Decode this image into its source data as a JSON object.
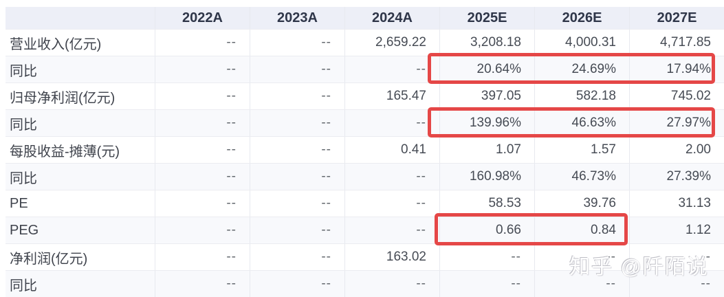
{
  "colors": {
    "header_bg": "#edeff7",
    "header_text": "#2f3649",
    "row_stripe_bg": "#f8f9fc",
    "row_bg": "#ffffff",
    "label_text": "#3f434c",
    "value_text": "#464b54",
    "grid_line": "#e7e9ef",
    "highlight_red": "#e54747"
  },
  "chart_data": {
    "type": "table",
    "title": "",
    "columns": [
      "",
      "2022A",
      "2023A",
      "2024A",
      "2025E",
      "2026E",
      "2027E"
    ],
    "rows": [
      {
        "label": "营业收入(亿元)",
        "values": [
          "--",
          "--",
          "2,659.22",
          "3,208.18",
          "4,000.31",
          "4,717.85"
        ]
      },
      {
        "label": "同比",
        "values": [
          "--",
          "--",
          "--",
          "20.64%",
          "24.69%",
          "17.94%"
        ]
      },
      {
        "label": "归母净利润(亿元)",
        "values": [
          "--",
          "--",
          "165.47",
          "397.05",
          "582.18",
          "745.02"
        ]
      },
      {
        "label": "同比",
        "values": [
          "--",
          "--",
          "--",
          "139.96%",
          "46.63%",
          "27.97%"
        ]
      },
      {
        "label": "每股收益-摊薄(元)",
        "values": [
          "--",
          "--",
          "0.41",
          "1.07",
          "1.57",
          "2.00"
        ]
      },
      {
        "label": "同比",
        "values": [
          "--",
          "--",
          "--",
          "160.98%",
          "46.73%",
          "27.39%"
        ]
      },
      {
        "label": "PE",
        "values": [
          "--",
          "--",
          "--",
          "58.53",
          "39.76",
          "31.13"
        ]
      },
      {
        "label": "PEG",
        "values": [
          "--",
          "--",
          "--",
          "0.66",
          "0.84",
          "1.12"
        ]
      },
      {
        "label": "净利润(亿元)",
        "values": [
          "--",
          "--",
          "163.02",
          "--",
          "--",
          "--"
        ]
      },
      {
        "label": "同比",
        "values": [
          "--",
          "--",
          "--",
          "--",
          "--",
          "--"
        ]
      }
    ],
    "highlights": [
      {
        "row_label": "同比",
        "row_index": 1,
        "columns": [
          "2025E",
          "2026E",
          "2027E"
        ],
        "values": [
          "20.64%",
          "24.69%",
          "17.94%"
        ]
      },
      {
        "row_label": "同比",
        "row_index": 3,
        "columns": [
          "2025E",
          "2026E",
          "2027E"
        ],
        "values": [
          "139.96%",
          "46.63%",
          "27.97%"
        ]
      },
      {
        "row_label": "PEG",
        "row_index": 7,
        "columns": [
          "2025E",
          "2026E"
        ],
        "values": [
          "0.66",
          "0.84"
        ]
      }
    ]
  },
  "watermark": {
    "text": "知乎 @阡陌说"
  }
}
